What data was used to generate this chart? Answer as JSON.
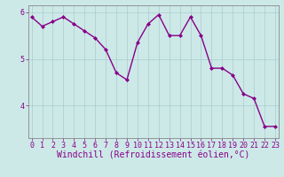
{
  "x": [
    0,
    1,
    2,
    3,
    4,
    5,
    6,
    7,
    8,
    9,
    10,
    11,
    12,
    13,
    14,
    15,
    16,
    17,
    18,
    19,
    20,
    21,
    22,
    23
  ],
  "y": [
    5.9,
    5.7,
    5.8,
    5.9,
    5.75,
    5.6,
    5.45,
    5.2,
    4.7,
    4.55,
    5.35,
    5.75,
    5.95,
    5.5,
    5.5,
    5.9,
    5.5,
    4.8,
    4.8,
    4.65,
    4.25,
    4.15,
    3.55,
    3.55
  ],
  "xlabel": "Windchill (Refroidissement éolien,°C)",
  "bg_color": "#cce9e8",
  "line_color": "#880088",
  "grid_color": "#aacccc",
  "axis_color": "#880088",
  "spine_color": "#888888",
  "ylim": [
    3.3,
    6.15
  ],
  "yticks": [
    4,
    5,
    6
  ],
  "xticks": [
    0,
    1,
    2,
    3,
    4,
    5,
    6,
    7,
    8,
    9,
    10,
    11,
    12,
    13,
    14,
    15,
    16,
    17,
    18,
    19,
    20,
    21,
    22,
    23
  ],
  "marker": "D",
  "markersize": 2.0,
  "linewidth": 1.0,
  "tick_fontsize": 6.0,
  "xlabel_fontsize": 7.0
}
